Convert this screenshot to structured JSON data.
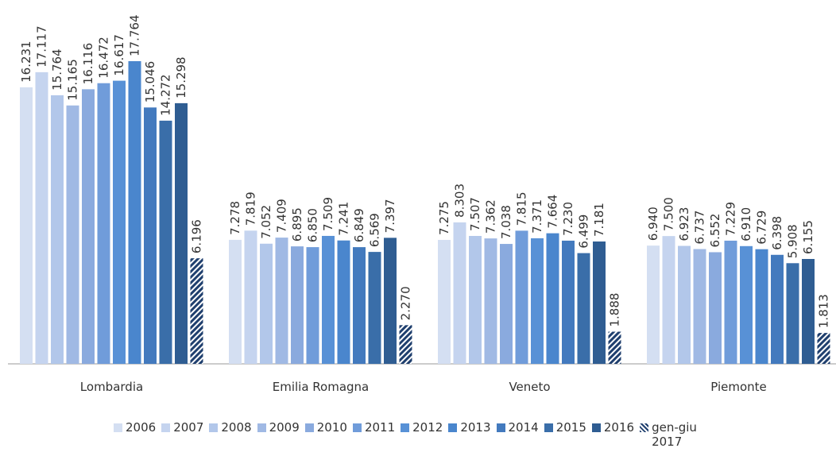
{
  "chart_data": {
    "type": "bar",
    "categories": [
      "Lombardia",
      "Emilia Romagna",
      "Veneto",
      "Piemonte"
    ],
    "series": [
      {
        "name": "2006",
        "color": "#d4dff2",
        "values": [
          16231,
          7278,
          7275,
          6940
        ],
        "value_labels": [
          "16.231",
          "7.278",
          "7.275",
          "6.940"
        ]
      },
      {
        "name": "2007",
        "color": "#c5d4ef",
        "values": [
          17117,
          7819,
          8303,
          7500
        ],
        "value_labels": [
          "17.117",
          "7.819",
          "8.303",
          "7.500"
        ]
      },
      {
        "name": "2008",
        "color": "#b2c7ea",
        "values": [
          15764,
          7052,
          7507,
          6923
        ],
        "value_labels": [
          "15.764",
          "7.052",
          "7.507",
          "6.923"
        ]
      },
      {
        "name": "2009",
        "color": "#a0b9e4",
        "values": [
          15165,
          7409,
          7362,
          6737
        ],
        "value_labels": [
          "15.165",
          "7.409",
          "7.362",
          "6.737"
        ]
      },
      {
        "name": "2010",
        "color": "#8aaade",
        "values": [
          16116,
          6895,
          7038,
          6552
        ],
        "value_labels": [
          "16.116",
          "6.895",
          "7.038",
          "6.552"
        ]
      },
      {
        "name": "2011",
        "color": "#709cda",
        "values": [
          16472,
          6850,
          7815,
          7229
        ],
        "value_labels": [
          "16.472",
          "6.850",
          "7.815",
          "7.229"
        ]
      },
      {
        "name": "2012",
        "color": "#5891d6",
        "values": [
          16617,
          7509,
          7371,
          6910
        ],
        "value_labels": [
          "16.617",
          "7.509",
          "7.371",
          "6.910"
        ]
      },
      {
        "name": "2013",
        "color": "#4a86cd",
        "values": [
          17764,
          7241,
          7664,
          6729
        ],
        "value_labels": [
          "17.764",
          "7.241",
          "7.664",
          "6.729"
        ]
      },
      {
        "name": "2014",
        "color": "#437abe",
        "values": [
          15046,
          6849,
          7230,
          6398
        ],
        "value_labels": [
          "15.046",
          "6.849",
          "7.230",
          "6.398"
        ]
      },
      {
        "name": "2015",
        "color": "#3a6ea9",
        "values": [
          14272,
          6569,
          6499,
          5908
        ],
        "value_labels": [
          "14.272",
          "6.569",
          "6.499",
          "5.908"
        ]
      },
      {
        "name": "2016",
        "color": "#2f5d92",
        "values": [
          15298,
          7397,
          7181,
          6155
        ],
        "value_labels": [
          "15.298",
          "7.397",
          "7.181",
          "6.155"
        ]
      },
      {
        "name": "gen-giu 2017",
        "color": "#1f3f6e",
        "hatch": true,
        "values": [
          6196,
          2270,
          1888,
          1813
        ],
        "value_labels": [
          "6.196",
          "2.270",
          "1.888",
          "1.813"
        ]
      }
    ],
    "legend": "bottom"
  }
}
